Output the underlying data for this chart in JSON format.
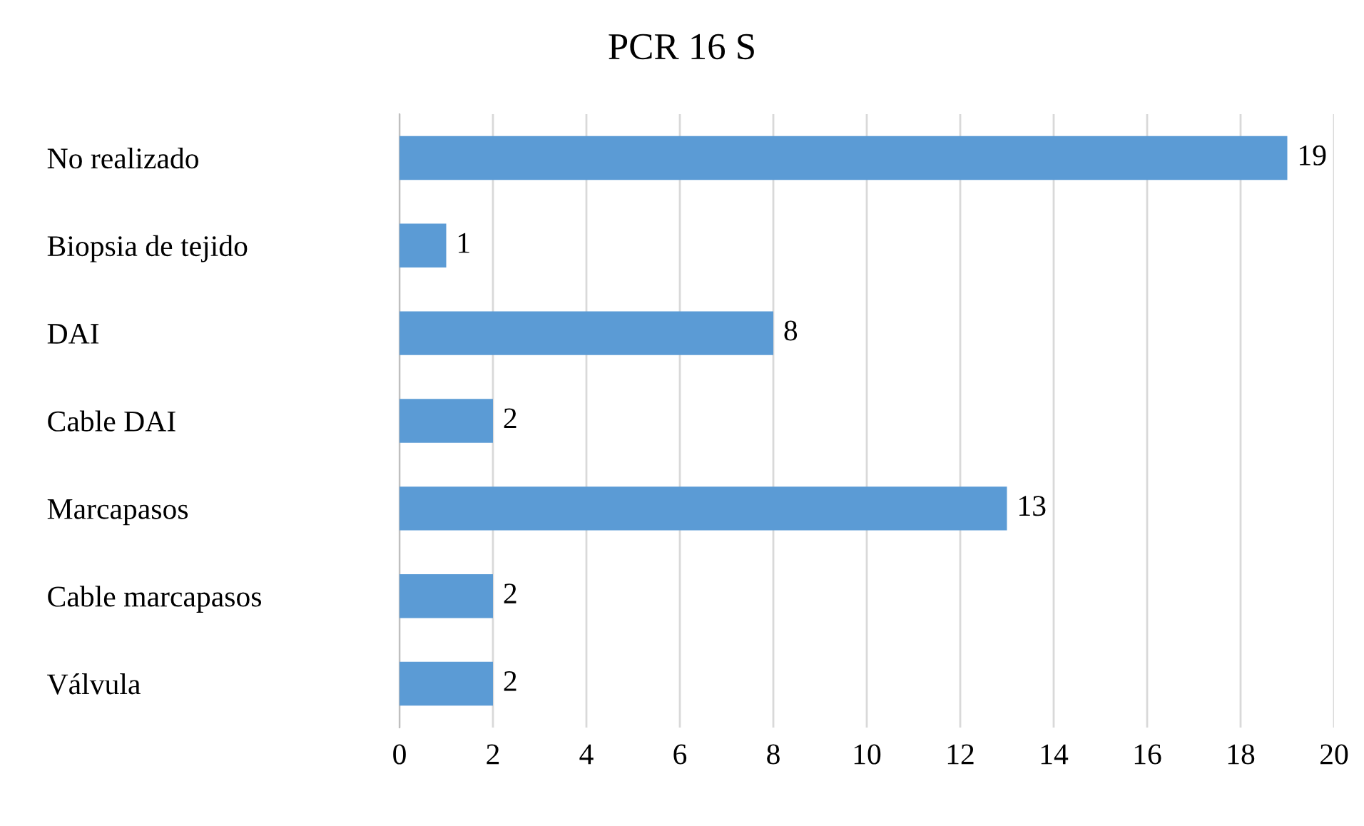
{
  "chart_data": {
    "type": "bar",
    "orientation": "horizontal",
    "title": "PCR 16 S",
    "categories": [
      "No realizado",
      "Biopsia de tejido",
      "DAI",
      "Cable DAI",
      "Marcapasos",
      "Cable marcapasos",
      "Válvula"
    ],
    "values": [
      19,
      1,
      8,
      2,
      13,
      2,
      2
    ],
    "color": "#5b9bd5",
    "xlim": [
      0,
      20
    ],
    "xticks": [
      0,
      2,
      4,
      6,
      8,
      10,
      12,
      14,
      16,
      18,
      20
    ],
    "grid": "x",
    "data_labels": true
  }
}
